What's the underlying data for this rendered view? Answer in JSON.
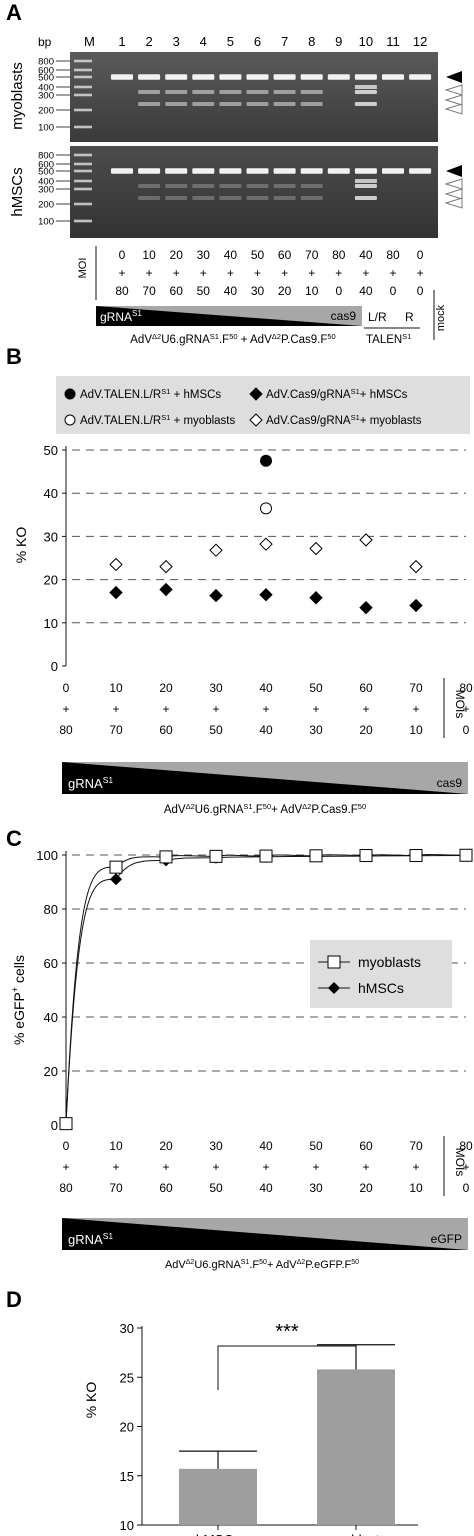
{
  "panel_a": {
    "letter": "A",
    "bp_label": "bp",
    "lane_header_marker": "M",
    "lanes": [
      "1",
      "2",
      "3",
      "4",
      "5",
      "6",
      "7",
      "8",
      "9",
      "10",
      "11",
      "12"
    ],
    "bp_ticks": [
      "800",
      "600",
      "500",
      "400",
      "300",
      "200",
      "100"
    ],
    "row_labels": [
      "myoblasts",
      "hMSCs"
    ],
    "moi_label": "MOI",
    "moi_top": [
      "0",
      "10",
      "20",
      "30",
      "40",
      "50",
      "60",
      "70",
      "80",
      "40",
      "80",
      "0"
    ],
    "moi_plus": [
      "+",
      "+",
      "+",
      "+",
      "+",
      "+",
      "+",
      "+",
      "+",
      "+",
      "+",
      "+"
    ],
    "moi_bottom": [
      "80",
      "70",
      "60",
      "50",
      "40",
      "30",
      "20",
      "10",
      "0",
      "40",
      "0",
      "0"
    ],
    "gradient_left": "gRNA",
    "gradient_left_sup": "S1",
    "gradient_right": "cas9",
    "talen_lr": "L/R",
    "talen_r": "R",
    "mock": "mock",
    "caption_left": {
      "p1": "AdV",
      "s1": "Δ2",
      "p2": "U6.gRNA",
      "s2": "S1",
      "p3": ".F",
      "s3": "50",
      "p4": "+ AdV",
      "s4": "Δ2",
      "p5": "P.Cas9.F",
      "s5": "50"
    },
    "caption_right": "TALEN",
    "caption_right_sup": "S1"
  },
  "panel_b": {
    "letter": "B",
    "legend": [
      {
        "text": "AdV.TALEN.L/R",
        "sup": "S1",
        "tail": " + hMSCs",
        "marker": "filled-circle"
      },
      {
        "text": "AdV.Cas9/gRNA",
        "sup": "S1",
        "tail": "+ hMSCs",
        "marker": "filled-diamond"
      },
      {
        "text": "AdV.TALEN.L/R",
        "sup": "S1",
        "tail": " + myoblasts",
        "marker": "open-circle"
      },
      {
        "text": "AdV.Cas9/gRNA",
        "sup": "S1",
        "tail": "+ myoblasts",
        "marker": "open-diamond"
      }
    ],
    "ylabel": "% KO",
    "yticks": [
      "0",
      "10",
      "20",
      "30",
      "40",
      "50"
    ],
    "moi_top": [
      "0",
      "10",
      "20",
      "30",
      "40",
      "50",
      "60",
      "70",
      "80"
    ],
    "moi_plus": [
      "+",
      "+",
      "+",
      "+",
      "+",
      "+",
      "+",
      "+",
      "+"
    ],
    "moi_bottom": [
      "80",
      "70",
      "60",
      "50",
      "40",
      "30",
      "20",
      "10",
      "0"
    ],
    "mois_label": "MOIs",
    "gradient_left": "gRNA",
    "gradient_left_sup": "S1",
    "gradient_right": "cas9",
    "caption": {
      "p1": "AdV",
      "s1": "Δ2",
      "p2": "U6.gRNA",
      "s2": "S1",
      "p3": ".F",
      "s3": "50",
      "p4": "+ AdV",
      "s4": "Δ2",
      "p5": "P.Cas9.F",
      "s5": "50"
    }
  },
  "panel_c": {
    "letter": "C",
    "ylabel_main": "% eGFP",
    "ylabel_sup": "+",
    "ylabel_tail": " cells",
    "yticks": [
      "0",
      "20",
      "40",
      "60",
      "80",
      "100"
    ],
    "legend": [
      {
        "text": "myoblasts",
        "marker": "open-square"
      },
      {
        "text": "hMSCs",
        "marker": "filled-diamond"
      }
    ],
    "moi_top": [
      "0",
      "10",
      "20",
      "30",
      "40",
      "50",
      "60",
      "70",
      "80"
    ],
    "moi_plus": [
      "+",
      "+",
      "+",
      "+",
      "+",
      "+",
      "+",
      "+",
      "+"
    ],
    "moi_bottom": [
      "80",
      "70",
      "60",
      "50",
      "40",
      "30",
      "20",
      "10",
      "0"
    ],
    "mois_label": "MOIs",
    "gradient_left": "gRNA",
    "gradient_left_sup": "S1",
    "gradient_right": "eGFP",
    "caption": {
      "p1": "AdV",
      "s1": "Δ2",
      "p2": "U6.gRNA",
      "s2": "S1",
      "p3": ".F",
      "s3": "50",
      "p4": "+ AdV",
      "s4": "Δ2",
      "p5": "P.eGFP.F",
      "s5": "50"
    }
  },
  "panel_d": {
    "letter": "D",
    "ylabel": "% KO",
    "yticks": [
      "10",
      "15",
      "20",
      "25",
      "30"
    ],
    "categories": [
      "hMSCs",
      "myoblasts"
    ],
    "significance": "***"
  },
  "chart_data": [
    {
      "type": "scatter",
      "panel": "B",
      "xlabel": "MOIs",
      "ylabel": "% KO",
      "ylim": [
        0,
        50
      ],
      "x": [
        10,
        20,
        30,
        40,
        50,
        60,
        70
      ],
      "series": [
        {
          "name": "AdV.TALEN.L/RS1 + hMSCs",
          "x": [
            40
          ],
          "values": [
            47.5
          ]
        },
        {
          "name": "AdV.TALEN.L/RS1 + myoblasts",
          "x": [
            40
          ],
          "values": [
            36.5
          ]
        },
        {
          "name": "AdV.Cas9/gRNAS1+ hMSCs",
          "x": [
            10,
            20,
            30,
            40,
            50,
            60,
            70
          ],
          "values": [
            17.0,
            17.7,
            16.3,
            16.5,
            15.8,
            13.5,
            14.0
          ]
        },
        {
          "name": "AdV.Cas9/gRNAS1+ myoblasts",
          "x": [
            10,
            20,
            30,
            40,
            50,
            60,
            70
          ],
          "values": [
            23.5,
            23.0,
            26.8,
            28.2,
            27.2,
            29.2,
            23.0
          ]
        }
      ],
      "grid": "horizontal dashed"
    },
    {
      "type": "line",
      "panel": "C",
      "xlabel": "MOIs",
      "ylabel": "% eGFP+ cells",
      "ylim": [
        0,
        100
      ],
      "x": [
        0,
        10,
        20,
        30,
        40,
        50,
        60,
        70,
        80
      ],
      "series": [
        {
          "name": "myoblasts",
          "values": [
            0.5,
            95.5,
            99.3,
            99.5,
            99.6,
            99.7,
            99.8,
            99.8,
            99.9
          ]
        },
        {
          "name": "hMSCs",
          "values": [
            0.5,
            91.0,
            98.0,
            99.0,
            99.3,
            99.5,
            99.6,
            99.7,
            99.8
          ]
        }
      ],
      "grid": "horizontal dashed",
      "legend_position": "right"
    },
    {
      "type": "bar",
      "panel": "D",
      "categories": [
        "hMSCs",
        "myoblasts"
      ],
      "values": [
        15.7,
        25.8
      ],
      "errors": [
        1.8,
        2.5
      ],
      "ylabel": "% KO",
      "ylim": [
        10,
        30
      ],
      "significance": "***",
      "colors": [
        "#9e9e9e",
        "#9e9e9e"
      ]
    }
  ]
}
